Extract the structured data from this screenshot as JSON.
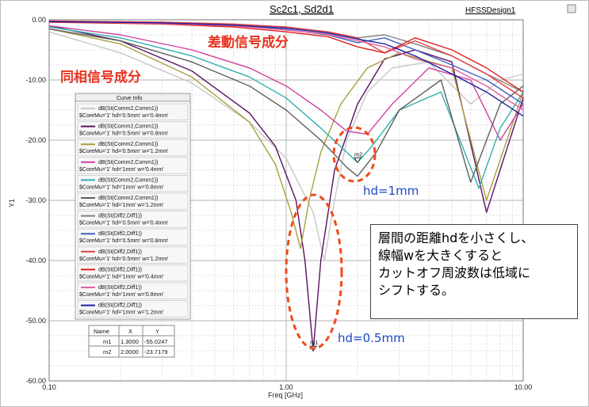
{
  "window": {
    "title": "Sc2c1, Sd2d1",
    "design_name": "HFSSDesign1"
  },
  "annotations": {
    "diff_mode": "差動信号成分",
    "common_mode": "同相信号成分",
    "hd_1mm": "hd=1mm",
    "hd_05mm": "hd=0.5mm",
    "note_lines": [
      "層間の距離hdを小さくし、",
      "線幅wを大きくすると",
      "カットオフ周波数は低域に",
      "シフトする。"
    ]
  },
  "legend": {
    "title": "Curve Info",
    "entries": [
      {
        "line1": "dB(St(Comm2,Comm1))",
        "line2": "$CoreMu='1' hd='0.5mm' w='0.4mm'",
        "color": "#c8c8c8"
      },
      {
        "line1": "dB(St(Comm2,Comm1))",
        "line2": "$CoreMu='1' hd='0.5mm' w='0.8mm'",
        "color": "#5a1060"
      },
      {
        "line1": "dB(St(Comm2,Comm1))",
        "line2": "$CoreMu='1' hd='0.5mm' w='1.2mm'",
        "color": "#a8a040"
      },
      {
        "line1": "dB(St(Comm2,Comm1))",
        "line2": "$CoreMu='1' hd='1mm' w='0.4mm'",
        "color": "#d040a0"
      },
      {
        "line1": "dB(St(Comm2,Comm1))",
        "line2": "$CoreMu='1' hd='1mm' w='0.8mm'",
        "color": "#30b0b0"
      },
      {
        "line1": "dB(St(Comm2,Comm1))",
        "line2": "$CoreMu='1' hd='1mm' w='1.2mm'",
        "color": "#606060"
      },
      {
        "line1": "dB(St(Diff2,Diff1))",
        "line2": "$CoreMu='1' hd='0.5mm' w='0.4mm'",
        "color": "#808080"
      },
      {
        "line1": "dB(St(Diff2,Diff1))",
        "line2": "$CoreMu='1' hd='0.5mm' w='0.8mm'",
        "color": "#4060c0"
      },
      {
        "line1": "dB(St(Diff2,Diff1))",
        "line2": "$CoreMu='1' hd='0.5mm' w='1.2mm'",
        "color": "#e04040"
      },
      {
        "line1": "dB(St(Diff2,Diff1))",
        "line2": "$CoreMu='1' hd='1mm' w='0.4mm'",
        "color": "#e02020"
      },
      {
        "line1": "dB(St(Diff2,Diff1))",
        "line2": "$CoreMu='1' hd='1mm' w='0.8mm'",
        "color": "#e060a0"
      },
      {
        "line1": "dB(St(Diff2,Diff1))",
        "line2": "$CoreMu='1' hd='1mm' w='1.2mm'",
        "color": "#2020a0"
      }
    ]
  },
  "marker_table": {
    "headers": [
      "Name",
      "X",
      "Y"
    ],
    "rows": [
      [
        "m1",
        "1.3000",
        "-55.0247"
      ],
      [
        "m2",
        "2.0000",
        "-23.7179"
      ]
    ]
  },
  "chart_data": {
    "type": "line",
    "title": "Sc2c1, Sd2d1",
    "xlabel": "Freq [GHz]",
    "ylabel": "Y1",
    "x_scale": "log",
    "xlim": [
      0.1,
      10.0
    ],
    "ylim": [
      -60.0,
      0.0
    ],
    "xticks": [
      0.1,
      1.0,
      10.0
    ],
    "xtick_labels": [
      "0.10",
      "1.00",
      "10.00"
    ],
    "yticks": [
      0,
      -10,
      -20,
      -30,
      -40,
      -50,
      -60
    ],
    "ytick_labels": [
      "0.00",
      "-10.00",
      "-20.00",
      "-30.00",
      "-40.00",
      "-50.00",
      "-60.00"
    ],
    "grid": true,
    "legend_position": "left",
    "markers": [
      {
        "name": "m1",
        "x": 1.3,
        "y": -55.0247
      },
      {
        "name": "m2",
        "x": 2.0,
        "y": -23.7179
      }
    ],
    "series": [
      {
        "name": "dB(St(Comm2,Comm1)) $CoreMu='1' hd='0.5mm' w='0.4mm'",
        "color": "#c8c8c8",
        "x": [
          0.1,
          0.2,
          0.4,
          0.7,
          1.0,
          1.3,
          1.45,
          1.6,
          1.8,
          2.2,
          2.8,
          4.0,
          6.0,
          8.0,
          10.0
        ],
        "y": [
          -2.0,
          -5.5,
          -10.5,
          -17.0,
          -23.0,
          -32.0,
          -40.0,
          -30.0,
          -20.0,
          -12.0,
          -8.0,
          -7.0,
          -14.0,
          -10.0,
          -9.0
        ]
      },
      {
        "name": "dB(St(Comm2,Comm1)) $CoreMu='1' hd='0.5mm' w='0.8mm'",
        "color": "#5a1060",
        "x": [
          0.1,
          0.2,
          0.4,
          0.7,
          0.9,
          1.1,
          1.2,
          1.3,
          1.4,
          1.6,
          2.0,
          2.6,
          3.5,
          5.0,
          7.0,
          10.0
        ],
        "y": [
          -1.0,
          -3.5,
          -8.5,
          -15.5,
          -21.0,
          -30.0,
          -40.0,
          -55.0,
          -40.0,
          -25.0,
          -14.0,
          -6.5,
          -5.0,
          -7.0,
          -32.0,
          -13.0
        ]
      },
      {
        "name": "dB(St(Comm2,Comm1)) $CoreMu='1' hd='0.5mm' w='1.2mm'",
        "color": "#a8a040",
        "x": [
          0.1,
          0.2,
          0.4,
          0.7,
          0.9,
          1.05,
          1.15,
          1.25,
          1.4,
          1.7,
          2.2,
          3.0,
          5.0,
          7.0,
          10.0
        ],
        "y": [
          -1.5,
          -4.0,
          -9.5,
          -17.0,
          -24.0,
          -32.0,
          -38.0,
          -30.0,
          -22.0,
          -14.0,
          -8.0,
          -5.5,
          -8.0,
          -30.0,
          -12.0
        ]
      },
      {
        "name": "dB(St(Comm2,Comm1)) $CoreMu='1' hd='1mm' w='0.4mm'",
        "color": "#d040a0",
        "x": [
          0.1,
          0.2,
          0.4,
          0.7,
          1.0,
          1.4,
          1.8,
          2.2,
          2.8,
          4.0,
          6.0,
          8.0,
          10.0
        ],
        "y": [
          -1.0,
          -2.5,
          -5.0,
          -8.0,
          -11.0,
          -15.0,
          -18.5,
          -19.0,
          -14.0,
          -8.0,
          -10.0,
          -20.0,
          -14.0
        ]
      },
      {
        "name": "dB(St(Comm2,Comm1)) $CoreMu='1' hd='1mm' w='0.8mm'",
        "color": "#30b0b0",
        "x": [
          0.1,
          0.2,
          0.4,
          0.7,
          1.0,
          1.4,
          1.8,
          2.0,
          2.3,
          3.0,
          4.5,
          6.5,
          8.0,
          10.0
        ],
        "y": [
          -1.2,
          -3.0,
          -6.0,
          -9.5,
          -13.0,
          -18.0,
          -22.0,
          -23.7,
          -21.0,
          -15.0,
          -12.0,
          -28.0,
          -18.0,
          -12.0
        ]
      },
      {
        "name": "dB(St(Comm2,Comm1)) $CoreMu='1' hd='1mm' w='1.2mm'",
        "color": "#606060",
        "x": [
          0.1,
          0.2,
          0.4,
          0.7,
          1.0,
          1.4,
          1.8,
          2.0,
          2.4,
          3.0,
          4.5,
          6.0,
          8.0,
          10.0
        ],
        "y": [
          -1.5,
          -3.5,
          -7.0,
          -11.0,
          -15.0,
          -20.0,
          -24.5,
          -26.0,
          -22.0,
          -15.0,
          -10.0,
          -27.0,
          -14.0,
          -11.0
        ]
      },
      {
        "name": "dB(St(Diff2,Diff1)) $CoreMu='1' hd='0.5mm' w='0.4mm'",
        "color": "#808080",
        "x": [
          0.1,
          0.3,
          0.6,
          1.0,
          1.5,
          2.0,
          2.6,
          3.5,
          5.0,
          7.0,
          10.0
        ],
        "y": [
          -0.3,
          -0.5,
          -0.8,
          -1.2,
          -2.0,
          -3.0,
          -2.5,
          -4.0,
          -6.0,
          -9.0,
          -12.0
        ]
      },
      {
        "name": "dB(St(Diff2,Diff1)) $CoreMu='1' hd='0.5mm' w='0.8mm'",
        "color": "#4060c0",
        "x": [
          0.1,
          0.3,
          0.6,
          1.0,
          1.5,
          2.0,
          2.6,
          3.5,
          5.0,
          7.0,
          10.0
        ],
        "y": [
          -0.3,
          -0.6,
          -1.0,
          -1.6,
          -2.5,
          -3.8,
          -3.0,
          -5.0,
          -7.5,
          -10.0,
          -14.0
        ]
      },
      {
        "name": "dB(St(Diff2,Diff1)) $CoreMu='1' hd='0.5mm' w='1.2mm'",
        "color": "#e04040",
        "x": [
          0.1,
          0.3,
          0.6,
          1.0,
          1.5,
          2.0,
          2.6,
          3.5,
          5.0,
          7.0,
          10.0
        ],
        "y": [
          -0.2,
          -0.4,
          -0.7,
          -1.2,
          -2.0,
          -3.0,
          -5.5,
          -3.5,
          -6.0,
          -9.0,
          -13.0
        ]
      },
      {
        "name": "dB(St(Diff2,Diff1)) $CoreMu='1' hd='1mm' w='0.4mm'",
        "color": "#e02020",
        "x": [
          0.1,
          0.3,
          0.6,
          1.0,
          1.5,
          2.0,
          2.6,
          3.5,
          5.0,
          7.0,
          10.0
        ],
        "y": [
          -0.4,
          -0.7,
          -1.2,
          -2.0,
          -2.8,
          -4.5,
          -5.5,
          -3.0,
          -5.0,
          -8.0,
          -12.0
        ]
      },
      {
        "name": "dB(St(Diff2,Diff1)) $CoreMu='1' hd='1mm' w='0.8mm'",
        "color": "#e060a0",
        "x": [
          0.1,
          0.3,
          0.6,
          1.0,
          1.5,
          2.0,
          2.6,
          3.5,
          5.0,
          7.0,
          10.0
        ],
        "y": [
          -0.3,
          -0.6,
          -1.0,
          -1.7,
          -2.4,
          -3.5,
          -4.5,
          -6.5,
          -8.0,
          -11.0,
          -15.0
        ]
      },
      {
        "name": "dB(St(Diff2,Diff1)) $CoreMu='1' hd='1mm' w='1.2mm'",
        "color": "#2020a0",
        "x": [
          0.1,
          0.3,
          0.6,
          1.0,
          1.5,
          2.0,
          2.6,
          3.5,
          5.0,
          7.0,
          10.0
        ],
        "y": [
          -0.3,
          -0.5,
          -0.9,
          -1.4,
          -2.2,
          -3.2,
          -4.0,
          -6.0,
          -9.0,
          -12.0,
          -16.0
        ]
      }
    ]
  }
}
